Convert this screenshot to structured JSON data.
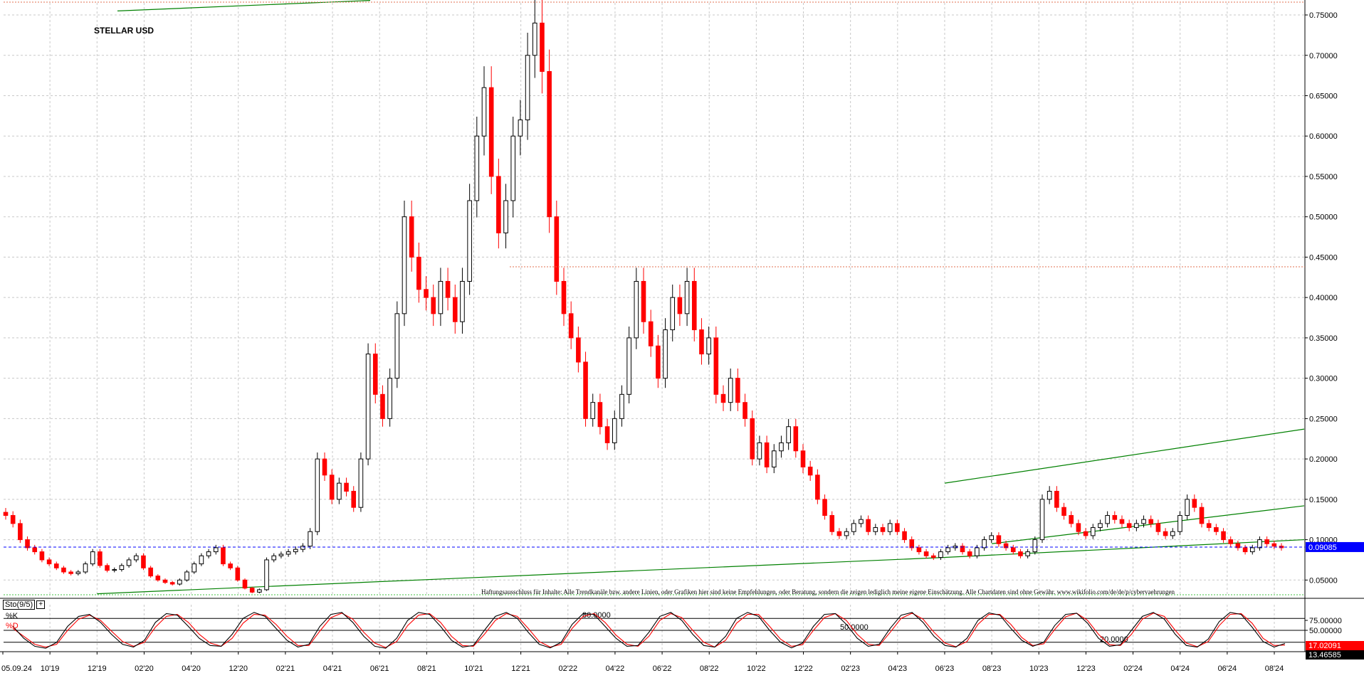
{
  "title": "STELLAR USD",
  "disclaimer": "Haftungsausschluss für Inhalte: Alle Trendkanäle bzw. andere Linien, oder Grafiken hier sind keine Empfehlungen, oder Beratung, sondern die zeigen lediglich meine eigene Einschätzung. Alle Chartdaten sind ohne Gewähr. www.wikifolio.com/de/de/p/cybervaehrungen",
  "colors": {
    "up": "#000000",
    "down": "#ff0000",
    "trendline": "#008000",
    "grid": "#c8c8c8",
    "last_price_bg": "#0000ff"
  },
  "chart_data": [
    {
      "type": "candlestick",
      "title": "STELLAR USD",
      "x_tick_labels": [
        "05.09.24",
        "10'19",
        "12'19",
        "02'20",
        "04'20",
        "12'20",
        "02'21",
        "04'21",
        "06'21",
        "08'21",
        "10'21",
        "12'21",
        "02'22",
        "04'22",
        "06'22",
        "08'22",
        "10'22",
        "12'22",
        "02'23",
        "04'23",
        "06'23",
        "08'23",
        "10'23",
        "12'23",
        "02'24",
        "04'24",
        "06'24",
        "08'24"
      ],
      "y_tick_labels": [
        "0.75000",
        "0.70000",
        "0.65000",
        "0.60000",
        "0.55000",
        "0.50000",
        "0.45000",
        "0.40000",
        "0.35000",
        "0.30000",
        "0.25000",
        "0.20000",
        "0.15000",
        "0.10000",
        "0.05000"
      ],
      "ylim": [
        0.03,
        0.765
      ],
      "last_price_label": "0.09085",
      "last_price": 0.09085,
      "resistance_level": 0.438,
      "series": [
        {
          "values": [
            0.13,
            0.12,
            0.1,
            0.09,
            0.085,
            0.075,
            0.07,
            0.065,
            0.06,
            0.058,
            0.06,
            0.07,
            0.085,
            0.068,
            0.062,
            0.063,
            0.068,
            0.075,
            0.08,
            0.065,
            0.055,
            0.05,
            0.047,
            0.045,
            0.05,
            0.06,
            0.07,
            0.08,
            0.085,
            0.09,
            0.07,
            0.065,
            0.05,
            0.04,
            0.035,
            0.038,
            0.075,
            0.08,
            0.082,
            0.085,
            0.088,
            0.092,
            0.11,
            0.2,
            0.18,
            0.15,
            0.17,
            0.16,
            0.14,
            0.2,
            0.33,
            0.28,
            0.25,
            0.3,
            0.38,
            0.5,
            0.45,
            0.41,
            0.4,
            0.38,
            0.42,
            0.4,
            0.37,
            0.42,
            0.52,
            0.6,
            0.66,
            0.55,
            0.48,
            0.52,
            0.6,
            0.62,
            0.7,
            0.74,
            0.68,
            0.5,
            0.42,
            0.38,
            0.35,
            0.32,
            0.25,
            0.27,
            0.24,
            0.22,
            0.25,
            0.28,
            0.35,
            0.42,
            0.37,
            0.34,
            0.3,
            0.36,
            0.4,
            0.38,
            0.42,
            0.36,
            0.33,
            0.35,
            0.28,
            0.27,
            0.3,
            0.27,
            0.25,
            0.2,
            0.22,
            0.19,
            0.21,
            0.22,
            0.24,
            0.21,
            0.19,
            0.18,
            0.15,
            0.13,
            0.11,
            0.105,
            0.11,
            0.12,
            0.125,
            0.11,
            0.115,
            0.11,
            0.12,
            0.11,
            0.1,
            0.09,
            0.085,
            0.08,
            0.078,
            0.085,
            0.09,
            0.092,
            0.085,
            0.08,
            0.09,
            0.1,
            0.105,
            0.095,
            0.09,
            0.085,
            0.08,
            0.085,
            0.1,
            0.15,
            0.16,
            0.14,
            0.13,
            0.12,
            0.11,
            0.105,
            0.115,
            0.12,
            0.13,
            0.125,
            0.12,
            0.115,
            0.12,
            0.125,
            0.12,
            0.11,
            0.105,
            0.11,
            0.13,
            0.15,
            0.14,
            0.12,
            0.115,
            0.11,
            0.1,
            0.095,
            0.09,
            0.085,
            0.09,
            0.1,
            0.095,
            0.092,
            0.09
          ]
        }
      ],
      "trendlines": [
        {
          "from": [
            "05.09.24-area",
            0.755
          ],
          "to": [
            "06'21-area",
            0.768
          ]
        },
        {
          "from": [
            "12'19",
            0.033
          ],
          "to": [
            "06'23",
            0.078
          ]
        },
        {
          "from": [
            "06'23",
            0.078
          ],
          "to": [
            "end",
            0.1
          ]
        },
        {
          "from": [
            "06'23",
            0.17
          ],
          "to": [
            "end",
            0.237
          ]
        },
        {
          "from": [
            "08'23",
            0.095
          ],
          "to": [
            "end",
            0.142
          ]
        }
      ]
    },
    {
      "type": "line",
      "title": "Sto(9/5)",
      "legend": [
        "%K",
        "%D"
      ],
      "y_tick_labels": [
        "75.00000",
        "50.00000"
      ],
      "level_labels": [
        "80.0000",
        "50.0000",
        "20.0000"
      ],
      "ylim": [
        0,
        100
      ],
      "last_k_label": "17.02091",
      "last_d_label": "13.46585",
      "series": [
        {
          "name": "%K",
          "values": [
            60,
            30,
            10,
            5,
            20,
            60,
            85,
            90,
            70,
            40,
            15,
            8,
            25,
            70,
            92,
            88,
            60,
            30,
            12,
            10,
            40,
            80,
            95,
            85,
            55,
            25,
            8,
            15,
            60,
            90,
            95,
            70,
            35,
            10,
            5,
            30,
            75,
            95,
            90,
            60,
            25,
            8,
            12,
            50,
            85,
            95,
            80,
            45,
            15,
            6,
            20,
            65,
            92,
            90,
            60,
            30,
            10,
            12,
            45,
            85,
            95,
            75,
            40,
            12,
            8,
            35,
            80,
            95,
            85,
            50,
            20,
            6,
            18,
            60,
            90,
            92,
            65,
            30,
            10,
            15,
            55,
            88,
            95,
            70,
            35,
            12,
            8,
            30,
            75,
            94,
            88,
            55,
            25,
            10,
            20,
            62,
            90,
            93,
            68,
            30,
            10,
            14,
            50,
            85,
            95,
            78,
            40,
            12,
            8,
            28,
            72,
            95,
            90,
            58,
            22,
            8,
            17
          ]
        },
        {
          "name": "%D",
          "values": [
            55,
            35,
            15,
            8,
            15,
            50,
            78,
            88,
            75,
            48,
            22,
            10,
            20,
            58,
            85,
            90,
            70,
            40,
            18,
            10,
            30,
            68,
            90,
            88,
            65,
            35,
            12,
            12,
            48,
            82,
            93,
            78,
            45,
            18,
            7,
            22,
            62,
            88,
            92,
            70,
            35,
            12,
            10,
            40,
            75,
            92,
            85,
            55,
            22,
            8,
            15,
            55,
            85,
            92,
            70,
            38,
            15,
            10,
            35,
            75,
            92,
            82,
            50,
            20,
            8,
            25,
            68,
            90,
            90,
            60,
            28,
            10,
            14,
            50,
            82,
            92,
            75,
            40,
            15,
            12,
            45,
            80,
            93,
            78,
            45,
            18,
            9,
            22,
            65,
            90,
            90,
            65,
            32,
            12,
            16,
            52,
            84,
            93,
            75,
            40,
            14,
            12,
            40,
            78,
            93,
            85,
            50,
            18,
            9,
            22,
            62,
            90,
            92,
            68,
            30,
            12,
            13
          ]
        }
      ]
    }
  ]
}
